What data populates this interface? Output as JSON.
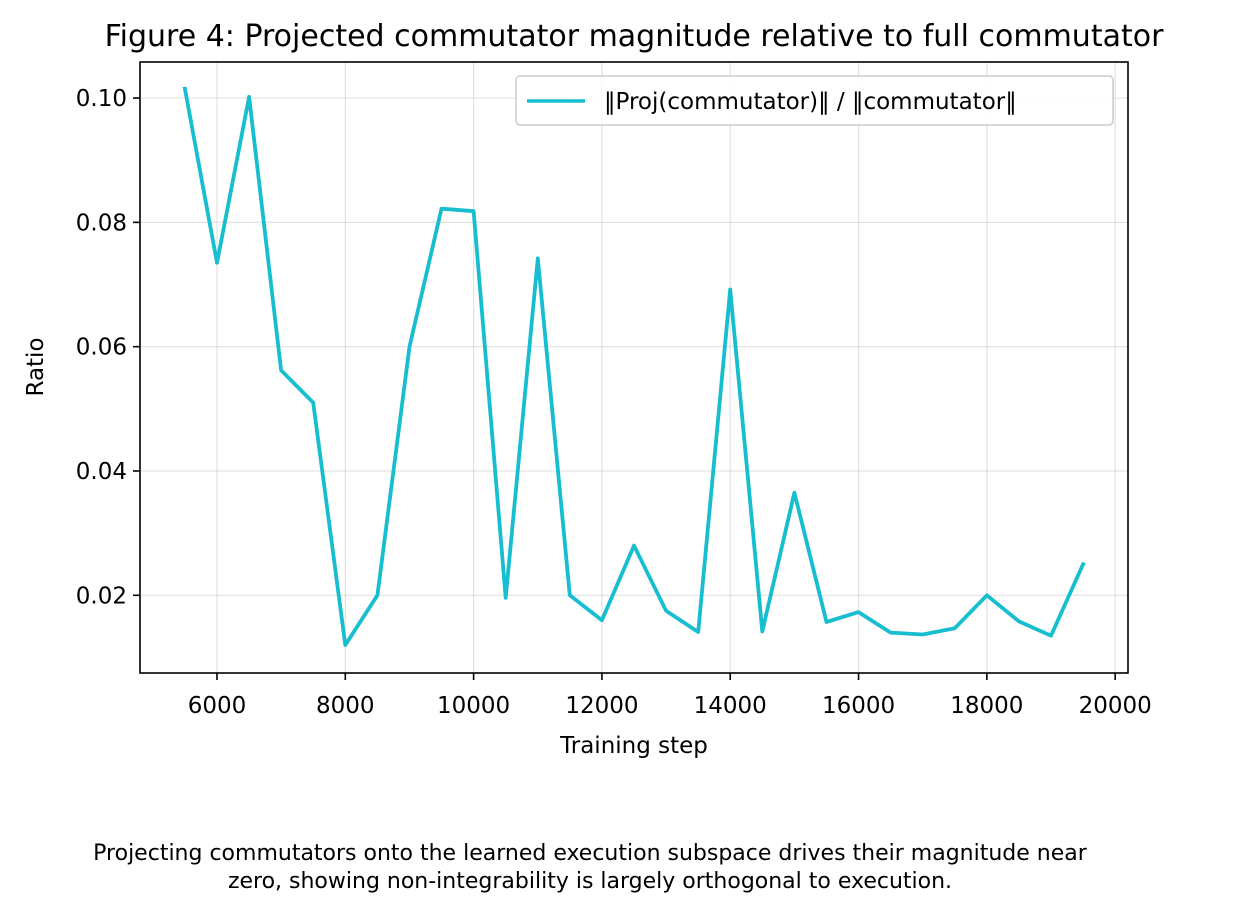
{
  "chart_data": {
    "type": "line",
    "title": "Figure 4: Projected commutator magnitude relative to full commutator",
    "xlabel": "Training step",
    "ylabel": "Ratio",
    "xlim": [
      4800,
      20200
    ],
    "ylim": [
      0.0075,
      0.1058
    ],
    "xticks": [
      6000,
      8000,
      10000,
      12000,
      14000,
      16000,
      18000,
      20000
    ],
    "yticks": [
      0.02,
      0.04,
      0.06,
      0.08,
      0.1
    ],
    "ytick_labels": [
      "0.02",
      "0.04",
      "0.06",
      "0.08",
      "0.10"
    ],
    "grid": true,
    "legend_position": "top-right",
    "series": [
      {
        "name": "‖Proj(commutator)‖ / ‖commutator‖",
        "color": "#17becf",
        "x": [
          5500,
          6000,
          6500,
          7000,
          7500,
          8000,
          8500,
          9000,
          9500,
          10000,
          10500,
          11000,
          11500,
          12000,
          12500,
          13000,
          13500,
          14000,
          14500,
          15000,
          15500,
          16000,
          16500,
          17000,
          17500,
          18000,
          18500,
          19000,
          19500
        ],
        "y": [
          0.1015,
          0.0735,
          0.1002,
          0.0562,
          0.051,
          0.012,
          0.02,
          0.06,
          0.0822,
          0.0818,
          0.0196,
          0.0742,
          0.02,
          0.016,
          0.028,
          0.0175,
          0.0141,
          0.0692,
          0.0142,
          0.0365,
          0.0157,
          0.0173,
          0.014,
          0.0137,
          0.0147,
          0.02,
          0.0158,
          0.0135,
          0.025
        ]
      }
    ]
  },
  "caption": {
    "line1": "Projecting commutators onto the learned execution subspace drives their magnitude near",
    "line2": "zero, showing non-integrability is largely orthogonal to execution."
  }
}
